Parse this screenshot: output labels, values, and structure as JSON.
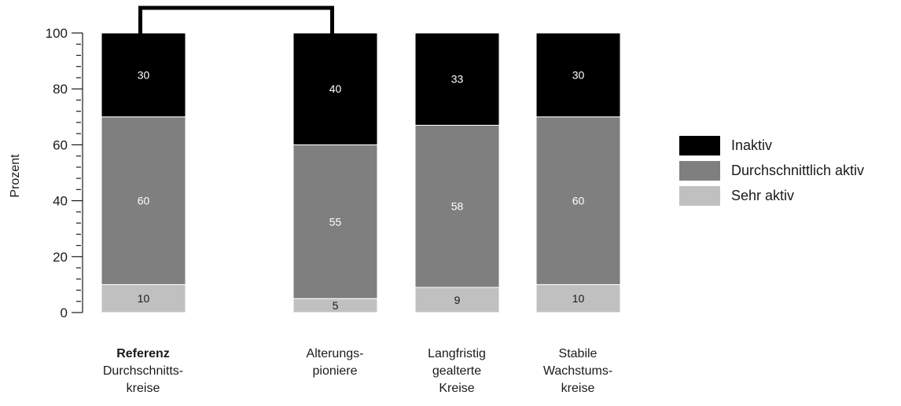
{
  "chart_data": {
    "type": "bar",
    "stacked": true,
    "ylabel": "Prozent",
    "xlabel": "",
    "title": "",
    "ylim": [
      0,
      100
    ],
    "y_ticks": [
      0,
      20,
      40,
      60,
      80,
      100
    ],
    "y_tick_labels": [
      "0",
      "20",
      "40",
      "60",
      "80",
      "100"
    ],
    "grid": false,
    "legend_position": "right",
    "categories": [
      {
        "line1": "Referenz",
        "line1_bold": true,
        "line2": "Durchschnitts-",
        "line3": "kreise"
      },
      {
        "line1": "Alterungs-",
        "line1_bold": false,
        "line2": "pioniere",
        "line3": ""
      },
      {
        "line1": "Langfristig",
        "line1_bold": false,
        "line2": "gealterte",
        "line3": "Kreise"
      },
      {
        "line1": "Stabile",
        "line1_bold": false,
        "line2": "Wachstums-",
        "line3": "kreise"
      }
    ],
    "series": [
      {
        "name": "Sehr aktiv",
        "color": "#c0c0c0",
        "label_color": "#1a1a1a",
        "values": [
          10,
          5,
          9,
          10
        ]
      },
      {
        "name": "Durchschnittlich aktiv",
        "color": "#7f7f7f",
        "label_color": "#ffffff",
        "values": [
          60,
          55,
          58,
          60
        ]
      },
      {
        "name": "Inaktiv",
        "color": "#000000",
        "label_color": "#ffffff",
        "values": [
          30,
          40,
          33,
          30
        ]
      }
    ],
    "legend_order": [
      "Inaktiv",
      "Durchschnittlich aktiv",
      "Sehr aktiv"
    ],
    "bracket": {
      "from_category": 0,
      "to_category": 1
    }
  }
}
